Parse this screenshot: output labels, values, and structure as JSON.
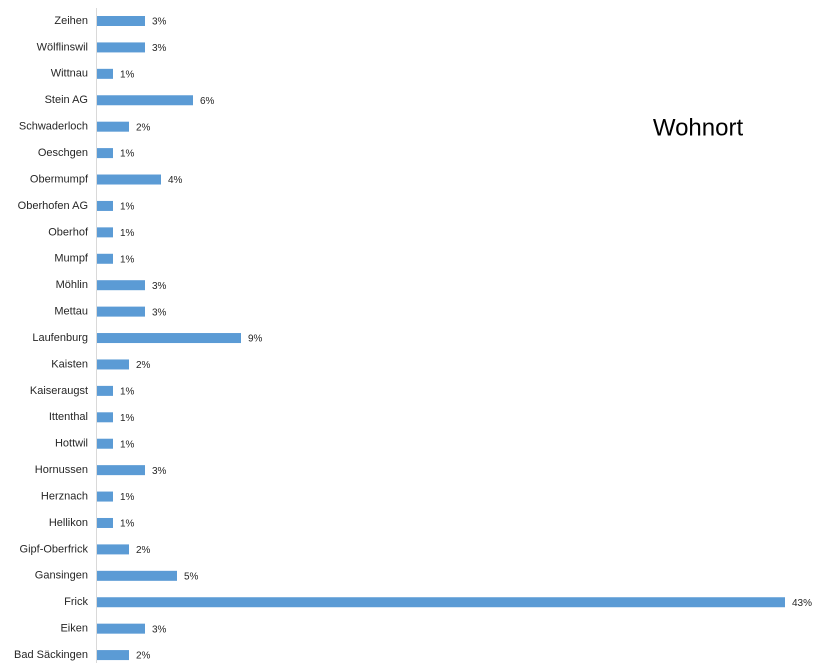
{
  "chart_data": {
    "type": "hbar",
    "title": "Wohnort",
    "categories": [
      "Zeihen",
      "Wölflinswil",
      "Wittnau",
      "Stein AG",
      "Schwaderloch",
      "Oeschgen",
      "Obermumpf",
      "Oberhofen AG",
      "Oberhof",
      "Mumpf",
      "Möhlin",
      "Mettau",
      "Laufenburg",
      "Kaisten",
      "Kaiseraugst",
      "Ittenthal",
      "Hottwil",
      "Hornussen",
      "Herznach",
      "Hellikon",
      "Gipf-Oberfrick",
      "Gansingen",
      "Frick",
      "Eiken",
      "Bad Säckingen"
    ],
    "values": [
      3,
      3,
      1,
      6,
      2,
      1,
      4,
      1,
      1,
      1,
      3,
      3,
      9,
      2,
      1,
      1,
      1,
      3,
      1,
      1,
      2,
      5,
      43,
      3,
      2
    ],
    "value_labels": [
      "3%",
      "3%",
      "1%",
      "6%",
      "2%",
      "1%",
      "4%",
      "1%",
      "1%",
      "1%",
      "3%",
      "3%",
      "9%",
      "2%",
      "1%",
      "1%",
      "1%",
      "3%",
      "1%",
      "1%",
      "2%",
      "5%",
      "43%",
      "3%",
      "2%"
    ],
    "color": "#5b9bd5"
  }
}
